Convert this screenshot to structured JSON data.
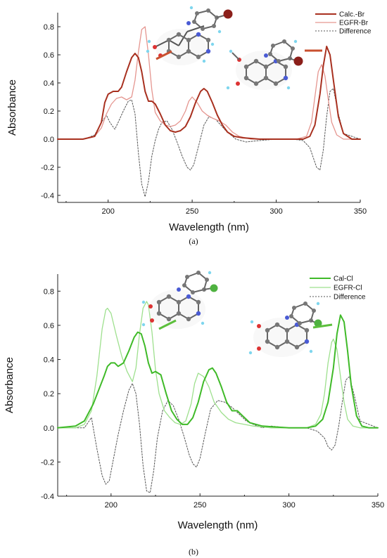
{
  "chart_data": [
    {
      "type": "line",
      "panel_label": "(a)",
      "xlabel": "Wavelength (nm)",
      "ylabel": "Absorbance",
      "xlim": [
        170,
        350
      ],
      "ylim": [
        -0.45,
        0.9
      ],
      "xticks": [
        200,
        250,
        300,
        350
      ],
      "yticks": [
        -0.4,
        -0.2,
        0.0,
        0.2,
        0.4,
        0.6,
        0.8
      ],
      "legend_position": "top-right",
      "series": [
        {
          "name": "Calc.-Br",
          "color": "#a8301f",
          "style": "solid",
          "x": [
            170,
            185,
            192,
            196,
            198,
            200,
            203,
            206,
            208,
            211,
            214,
            216,
            218,
            220,
            222,
            224,
            226,
            228,
            231,
            234,
            237,
            240,
            243,
            246,
            249,
            252,
            255,
            257,
            259,
            262,
            265,
            268,
            271,
            275,
            280,
            290,
            300,
            310,
            316,
            320,
            323,
            326,
            328,
            330,
            332,
            334,
            337,
            340,
            345,
            350
          ],
          "y": [
            0.0,
            0.0,
            0.02,
            0.12,
            0.26,
            0.32,
            0.34,
            0.34,
            0.37,
            0.48,
            0.58,
            0.61,
            0.58,
            0.48,
            0.34,
            0.27,
            0.27,
            0.25,
            0.18,
            0.1,
            0.06,
            0.05,
            0.06,
            0.09,
            0.16,
            0.26,
            0.34,
            0.36,
            0.34,
            0.26,
            0.17,
            0.1,
            0.05,
            0.02,
            0.01,
            0.0,
            0.0,
            0.0,
            0.0,
            0.02,
            0.1,
            0.32,
            0.52,
            0.66,
            0.6,
            0.42,
            0.16,
            0.04,
            0.0,
            0.0
          ]
        },
        {
          "name": "EGFR-Br",
          "color": "#e59690",
          "style": "solid",
          "x": [
            170,
            185,
            192,
            196,
            199,
            202,
            205,
            208,
            211,
            214,
            216,
            218,
            220,
            222,
            224,
            226,
            228,
            231,
            234,
            237,
            240,
            243,
            246,
            248,
            250,
            253,
            256,
            259,
            262,
            266,
            270,
            274,
            278,
            285,
            300,
            312,
            318,
            321,
            323,
            325,
            327,
            329,
            331,
            333,
            336,
            340,
            350
          ],
          "y": [
            0.0,
            0.0,
            0.02,
            0.08,
            0.18,
            0.25,
            0.29,
            0.3,
            0.28,
            0.3,
            0.42,
            0.62,
            0.78,
            0.8,
            0.6,
            0.35,
            0.19,
            0.13,
            0.1,
            0.09,
            0.1,
            0.13,
            0.2,
            0.27,
            0.3,
            0.26,
            0.2,
            0.17,
            0.15,
            0.13,
            0.1,
            0.05,
            0.02,
            0.0,
            0.0,
            0.0,
            0.02,
            0.12,
            0.3,
            0.48,
            0.53,
            0.45,
            0.28,
            0.12,
            0.03,
            0.0,
            0.0
          ]
        },
        {
          "name": "Difference",
          "color": "#555555",
          "style": "dotted",
          "x": [
            170,
            186,
            192,
            196,
            199,
            201,
            204,
            206,
            209,
            212,
            214,
            216,
            218,
            220,
            222,
            224,
            226,
            228,
            230,
            232,
            235,
            238,
            241,
            244,
            247,
            249,
            251,
            254,
            257,
            260,
            264,
            270,
            276,
            282,
            290,
            300,
            310,
            316,
            320,
            322,
            324,
            326,
            328,
            330,
            332,
            334,
            337,
            340,
            350
          ],
          "y": [
            0.0,
            0.0,
            0.03,
            0.12,
            0.17,
            0.12,
            0.07,
            0.12,
            0.2,
            0.27,
            0.28,
            0.18,
            -0.1,
            -0.32,
            -0.41,
            -0.3,
            -0.12,
            -0.01,
            0.07,
            0.12,
            0.13,
            0.07,
            -0.02,
            -0.12,
            -0.2,
            -0.22,
            -0.18,
            -0.04,
            0.1,
            0.16,
            0.14,
            0.06,
            0.0,
            -0.02,
            -0.01,
            0.0,
            0.0,
            -0.01,
            -0.06,
            -0.13,
            -0.2,
            -0.22,
            -0.08,
            0.16,
            0.34,
            0.36,
            0.18,
            0.04,
            0.0
          ]
        }
      ]
    },
    {
      "type": "line",
      "panel_label": "(b)",
      "xlabel": "Wavelength (nm)",
      "ylabel": "Absorbance",
      "xlim": [
        170,
        350
      ],
      "ylim": [
        -0.4,
        0.9
      ],
      "xticks": [
        200,
        250,
        300,
        350
      ],
      "yticks": [
        -0.4,
        -0.2,
        0.0,
        0.2,
        0.4,
        0.6,
        0.8
      ],
      "legend_position": "top-right",
      "series": [
        {
          "name": "Cal-Cl",
          "color": "#3fba28",
          "style": "solid",
          "x": [
            170,
            180,
            185,
            190,
            193,
            196,
            198,
            200,
            202,
            204,
            207,
            210,
            213,
            215,
            217,
            219,
            221,
            223,
            225,
            228,
            231,
            234,
            237,
            240,
            243,
            246,
            249,
            252,
            255,
            257,
            259,
            262,
            265,
            268,
            271,
            274,
            278,
            285,
            300,
            310,
            315,
            319,
            322,
            325,
            327,
            329,
            331,
            333,
            335,
            338,
            341,
            345,
            350
          ],
          "y": [
            0.0,
            0.01,
            0.04,
            0.14,
            0.22,
            0.3,
            0.36,
            0.38,
            0.38,
            0.36,
            0.38,
            0.45,
            0.53,
            0.56,
            0.55,
            0.48,
            0.38,
            0.32,
            0.33,
            0.31,
            0.2,
            0.1,
            0.05,
            0.02,
            0.02,
            0.06,
            0.15,
            0.27,
            0.34,
            0.35,
            0.32,
            0.24,
            0.15,
            0.1,
            0.1,
            0.07,
            0.03,
            0.01,
            0.0,
            0.0,
            0.01,
            0.05,
            0.15,
            0.35,
            0.55,
            0.66,
            0.62,
            0.45,
            0.25,
            0.07,
            0.01,
            0.0,
            0.0
          ]
        },
        {
          "name": "EGFR-Cl",
          "color": "#9ee08e",
          "style": "solid",
          "x": [
            170,
            180,
            185,
            189,
            192,
            195,
            197,
            198,
            200,
            203,
            206,
            209,
            212,
            214,
            216,
            218,
            220,
            221,
            223,
            225,
            227,
            230,
            233,
            236,
            239,
            242,
            245,
            247,
            249,
            252,
            255,
            258,
            262,
            266,
            270,
            275,
            280,
            290,
            300,
            310,
            315,
            318,
            320,
            322,
            324,
            325,
            327,
            329,
            331,
            333,
            336,
            340,
            350
          ],
          "y": [
            0.0,
            0.0,
            0.02,
            0.1,
            0.3,
            0.58,
            0.69,
            0.7,
            0.67,
            0.54,
            0.42,
            0.33,
            0.27,
            0.35,
            0.55,
            0.7,
            0.74,
            0.72,
            0.56,
            0.34,
            0.2,
            0.1,
            0.06,
            0.03,
            0.02,
            0.04,
            0.14,
            0.26,
            0.32,
            0.3,
            0.24,
            0.15,
            0.09,
            0.05,
            0.03,
            0.02,
            0.01,
            0.0,
            0.0,
            0.0,
            0.02,
            0.08,
            0.2,
            0.38,
            0.5,
            0.52,
            0.46,
            0.3,
            0.15,
            0.05,
            0.01,
            0.0,
            0.0
          ]
        },
        {
          "name": "Difference",
          "color": "#555555",
          "style": "dotted",
          "x": [
            170,
            185,
            189,
            192,
            195,
            197,
            199,
            201,
            204,
            207,
            210,
            212,
            214,
            216,
            218,
            220,
            222,
            224,
            226,
            229,
            232,
            235,
            238,
            241,
            244,
            246,
            248,
            250,
            253,
            256,
            260,
            264,
            268,
            272,
            276,
            280,
            285,
            290,
            300,
            310,
            316,
            320,
            322,
            324,
            326,
            328,
            330,
            332,
            334,
            337,
            340,
            350
          ],
          "y": [
            0.0,
            0.0,
            0.06,
            -0.12,
            -0.28,
            -0.33,
            -0.31,
            -0.2,
            -0.04,
            0.1,
            0.22,
            0.26,
            0.2,
            0.02,
            -0.22,
            -0.37,
            -0.38,
            -0.25,
            -0.06,
            0.1,
            0.16,
            0.13,
            0.05,
            -0.05,
            -0.16,
            -0.21,
            -0.23,
            -0.18,
            -0.03,
            0.11,
            0.16,
            0.15,
            0.12,
            0.08,
            0.04,
            0.02,
            0.0,
            0.01,
            0.0,
            0.0,
            -0.02,
            -0.06,
            -0.11,
            -0.13,
            -0.1,
            0.01,
            0.15,
            0.28,
            0.3,
            0.18,
            0.04,
            0.0
          ]
        }
      ]
    }
  ]
}
